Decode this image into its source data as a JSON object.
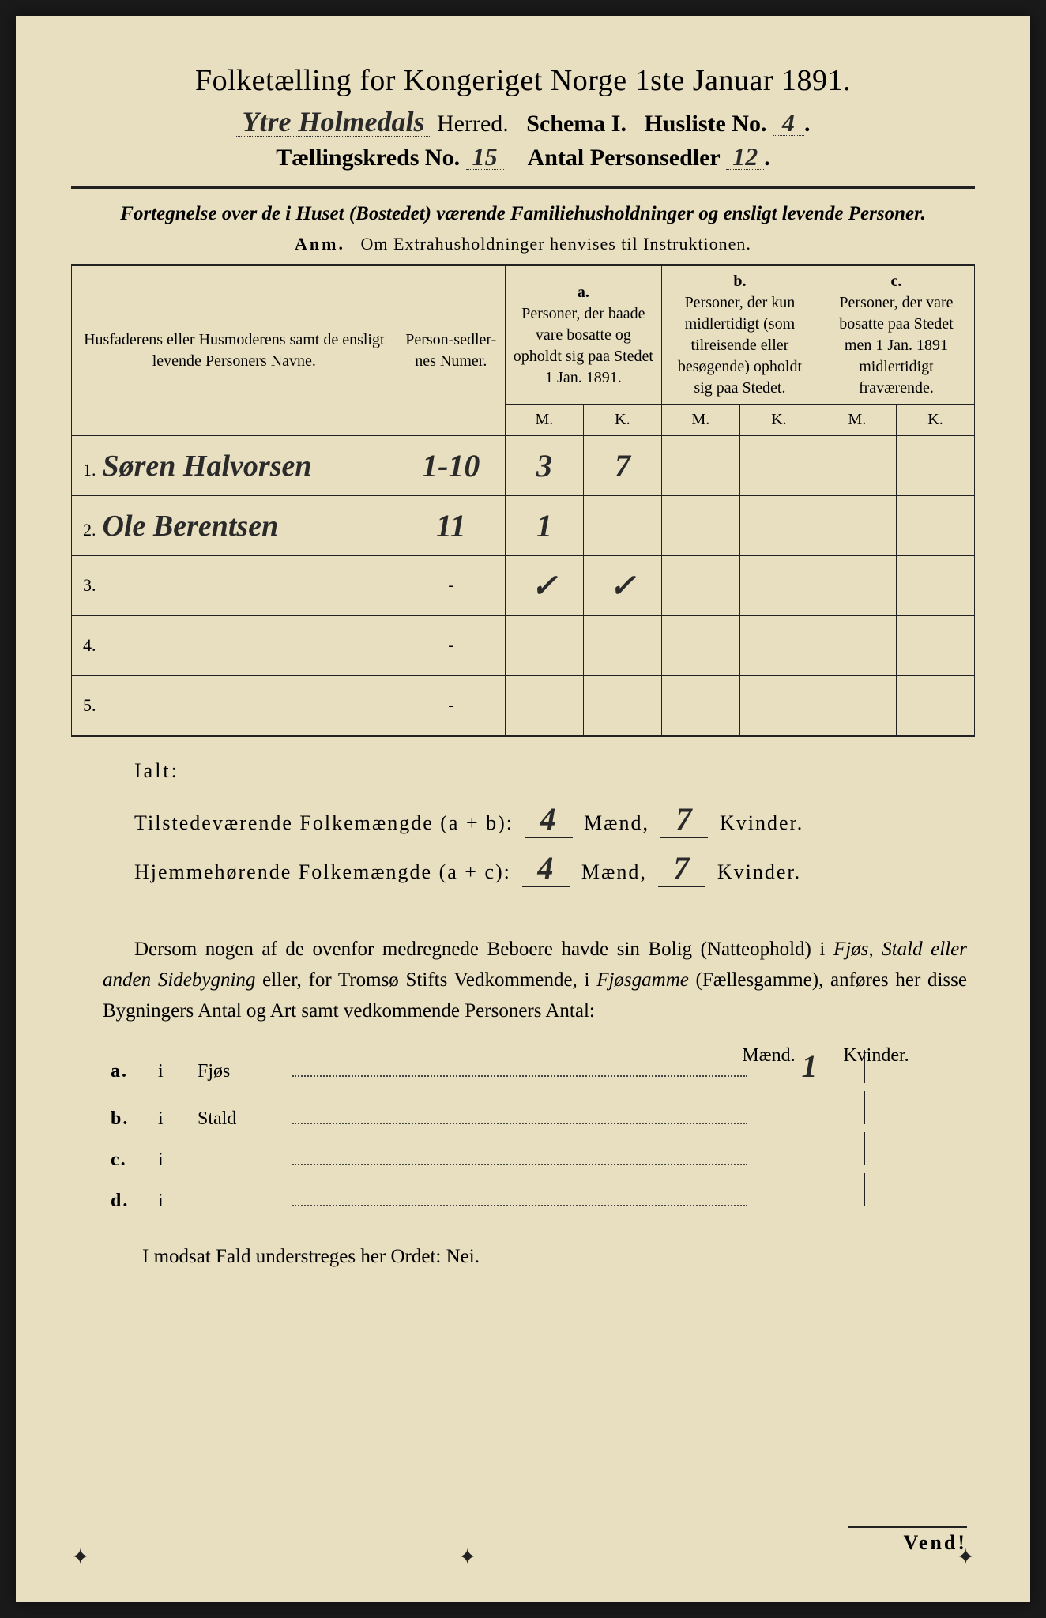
{
  "title": "Folketælling for Kongeriget Norge 1ste Januar 1891.",
  "header": {
    "herred_value": "Ytre Holmedals",
    "herred_label": "Herred.",
    "schema_label": "Schema I.",
    "husliste_label": "Husliste No.",
    "husliste_value": "4",
    "kreds_label": "Tællingskreds No.",
    "kreds_value": "15",
    "antal_label": "Antal Personsedler",
    "antal_value": "12"
  },
  "subtitle": "Fortegnelse over de i Huset (Bostedet) værende Familiehusholdninger og ensligt levende Personer.",
  "anm_label": "Anm.",
  "anm_text": "Om Extrahusholdninger henvises til Instruktionen.",
  "table": {
    "col_names": "Husfaderens eller Husmoderens samt de ensligt levende Personers Navne.",
    "col_num": "Person-sedler-nes Numer.",
    "col_a_label": "a.",
    "col_a": "Personer, der baade vare bosatte og opholdt sig paa Stedet 1 Jan. 1891.",
    "col_b_label": "b.",
    "col_b": "Personer, der kun midlertidigt (som tilreisende eller besøgende) opholdt sig paa Stedet.",
    "col_c_label": "c.",
    "col_c": "Personer, der vare bosatte paa Stedet men 1 Jan. 1891 midlertidigt fraværende.",
    "m": "M.",
    "k": "K.",
    "rows": [
      {
        "n": "1.",
        "name": "Søren Halvorsen",
        "num": "1-10",
        "a_m": "3",
        "a_k": "7",
        "b_m": "",
        "b_k": "",
        "c_m": "",
        "c_k": ""
      },
      {
        "n": "2.",
        "name": "Ole Berentsen",
        "num": "11",
        "a_m": "1",
        "a_k": "",
        "b_m": "",
        "b_k": "",
        "c_m": "",
        "c_k": ""
      },
      {
        "n": "3.",
        "name": "",
        "num": "",
        "a_m": "✓",
        "a_k": "✓",
        "b_m": "",
        "b_k": "",
        "c_m": "",
        "c_k": ""
      },
      {
        "n": "4.",
        "name": "",
        "num": "",
        "a_m": "",
        "a_k": "",
        "b_m": "",
        "b_k": "",
        "c_m": "",
        "c_k": ""
      },
      {
        "n": "5.",
        "name": "",
        "num": "",
        "a_m": "",
        "a_k": "",
        "b_m": "",
        "b_k": "",
        "c_m": "",
        "c_k": ""
      }
    ]
  },
  "totals": {
    "ialt": "Ialt:",
    "line1_label": "Tilstedeværende Folkemængde (a + b):",
    "line1_m": "4",
    "line1_k": "7",
    "line2_label": "Hjemmehørende Folkemængde (a + c):",
    "line2_m": "4",
    "line2_k": "7",
    "maend": "Mænd,",
    "kvinder": "Kvinder."
  },
  "paragraph": "Dersom nogen af de ovenfor medregnede Beboere havde sin Bolig (Natteophold) i Fjøs, Stald eller anden Sidebygning eller, for Tromsø Stifts Vedkommende, i Fjøsgamme (Fællesgamme), anføres her disse Bygningers Antal og Art samt vedkommende Personers Antal:",
  "outbuildings": {
    "head_m": "Mænd.",
    "head_k": "Kvinder.",
    "rows": [
      {
        "label": "a.",
        "i": "i",
        "name": "Fjøs",
        "m": "1",
        "k": ""
      },
      {
        "label": "b.",
        "i": "i",
        "name": "Stald",
        "m": "",
        "k": ""
      },
      {
        "label": "c.",
        "i": "i",
        "name": "",
        "m": "",
        "k": ""
      },
      {
        "label": "d.",
        "i": "i",
        "name": "",
        "m": "",
        "k": ""
      }
    ]
  },
  "nei_line": "I modsat Fald understreges her Ordet: Nei.",
  "vend": "Vend!",
  "colors": {
    "paper": "#e8dfc0",
    "ink": "#222222",
    "handwriting": "#2a2a2a",
    "background": "#1a1a1a"
  }
}
